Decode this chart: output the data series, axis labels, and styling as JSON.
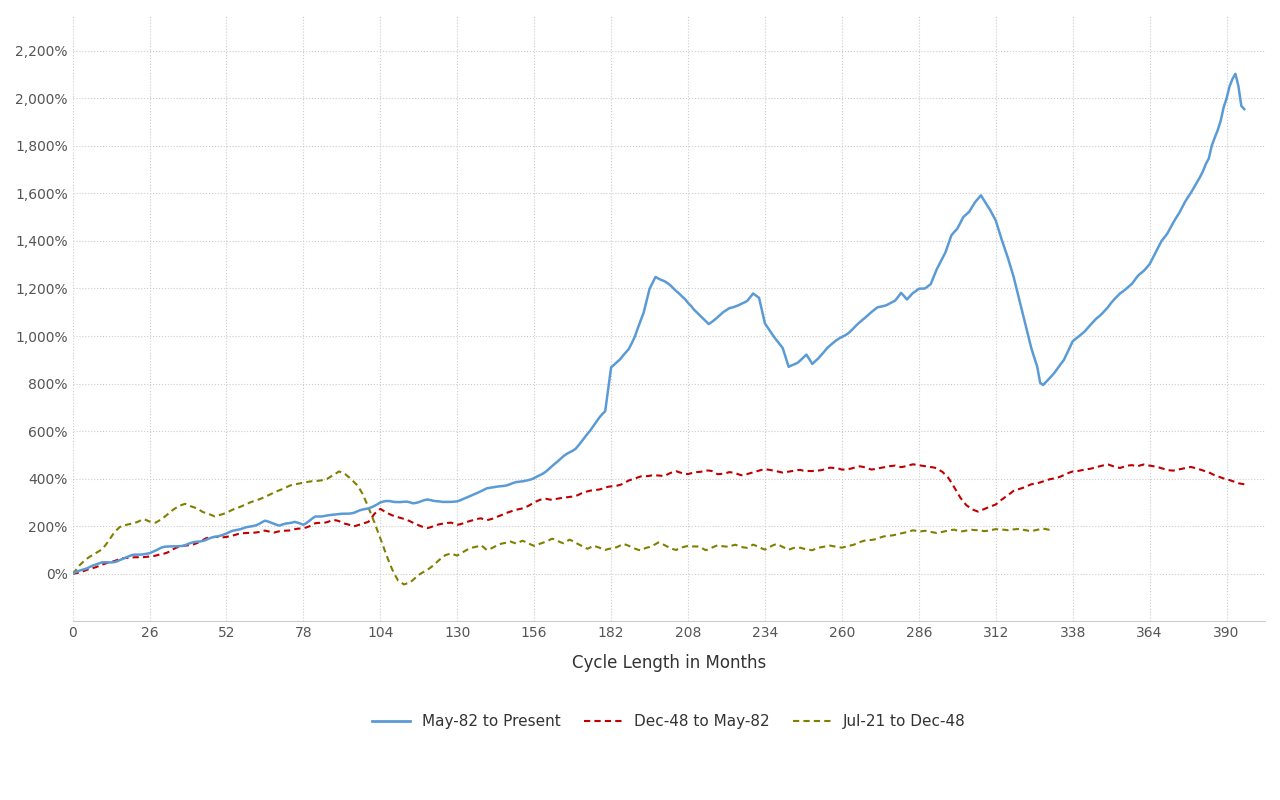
{
  "title": "",
  "xlabel": "Cycle Length in Months",
  "ylabel": "",
  "background_color": "#ffffff",
  "grid_color": "#cccccc",
  "xlim": [
    0,
    403
  ],
  "ylim": [
    -200,
    2350
  ],
  "xticks": [
    0,
    26,
    52,
    78,
    104,
    130,
    156,
    182,
    208,
    234,
    260,
    286,
    312,
    338,
    364,
    390
  ],
  "ytick_labels": [
    "0%",
    "200%",
    "400%",
    "600%",
    "800%",
    "1,000%",
    "1,200%",
    "1,400%",
    "1,600%",
    "1,800%",
    "2,000%",
    "2,200%"
  ],
  "ytick_positions": [
    0,
    200,
    400,
    600,
    800,
    1000,
    1200,
    1400,
    1600,
    1800,
    2000,
    2200
  ],
  "series": [
    {
      "label": "May-82 to Present",
      "color": "#5B9BD5",
      "linewidth": 1.8,
      "linestyle": "solid"
    },
    {
      "label": "Dec-48 to May-82",
      "color": "#C00000",
      "linewidth": 1.5,
      "linestyle": "dotted"
    },
    {
      "label": "Jul-21 to Dec-48",
      "color": "#808000",
      "linewidth": 1.5,
      "linestyle": "dotted"
    }
  ],
  "legend_ncol": 3,
  "font_size_ticks": 10,
  "font_size_xlabel": 12
}
